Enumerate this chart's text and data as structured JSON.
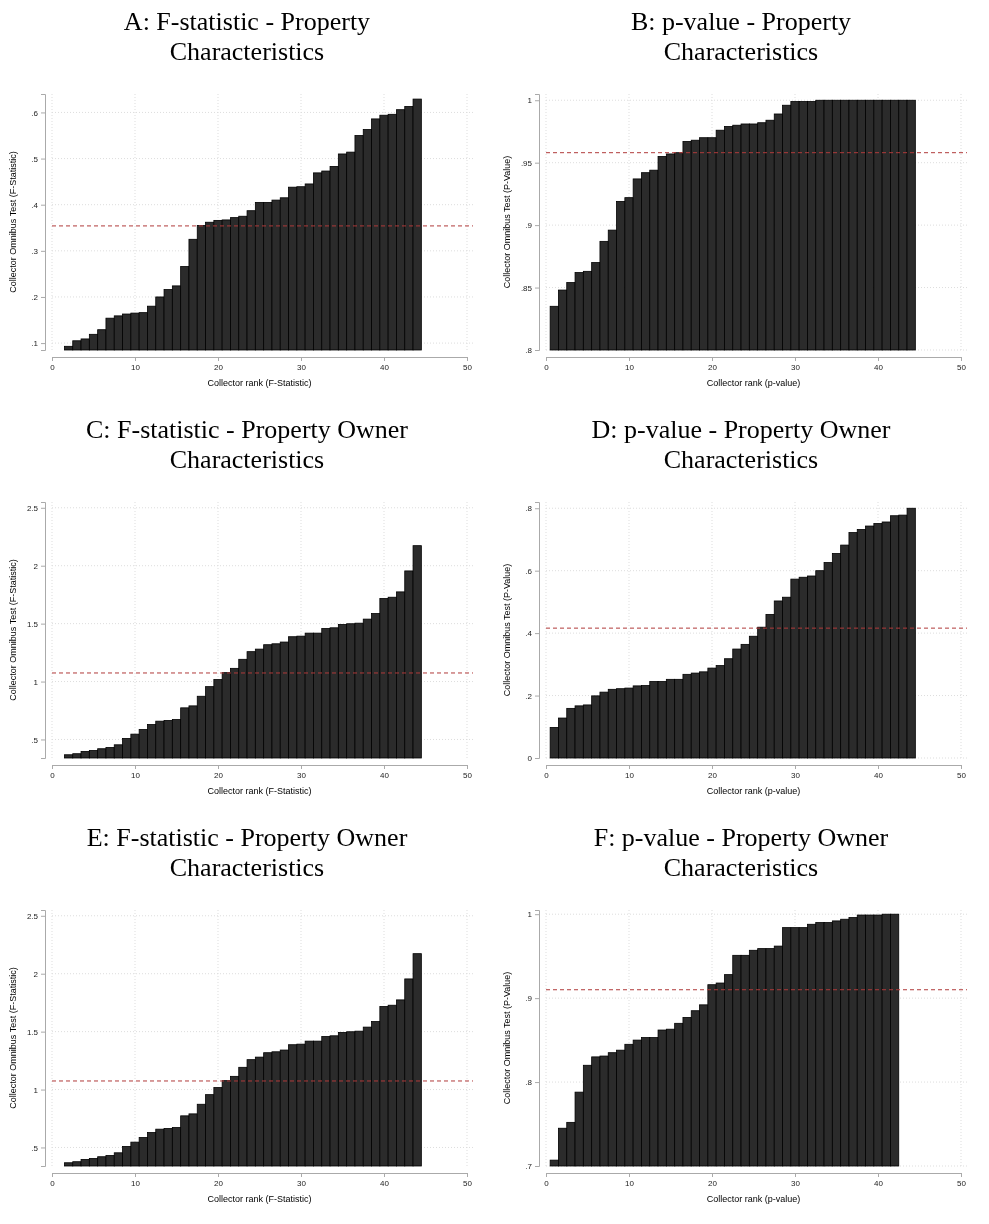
{
  "chart_data": [
    {
      "type": "bar",
      "title": "A: F-statistic - Property Characteristics",
      "xlabel": "Collector rank (F-Statistic)",
      "ylabel": "Collector Omnibus Test (F-Statistic)",
      "color": "#2b2b2b",
      "grid": true,
      "x": [
        2,
        3,
        4,
        5,
        6,
        7,
        8,
        9,
        10,
        11,
        12,
        13,
        14,
        15,
        16,
        17,
        18,
        19,
        20,
        21,
        22,
        23,
        24,
        25,
        26,
        27,
        28,
        29,
        30,
        31,
        32,
        33,
        34,
        35,
        36,
        37,
        38,
        39,
        40,
        41,
        42,
        43,
        44
      ],
      "values": [
        0.093,
        0.105,
        0.109,
        0.119,
        0.129,
        0.154,
        0.159,
        0.163,
        0.165,
        0.166,
        0.18,
        0.2,
        0.216,
        0.224,
        0.266,
        0.325,
        0.355,
        0.362,
        0.366,
        0.367,
        0.372,
        0.375,
        0.387,
        0.405,
        0.405,
        0.41,
        0.415,
        0.438,
        0.439,
        0.445,
        0.469,
        0.473,
        0.483,
        0.51,
        0.514,
        0.55,
        0.563,
        0.586,
        0.594,
        0.596,
        0.606,
        0.613,
        0.629
      ],
      "xlim": [
        0,
        50
      ],
      "xticks": [
        0,
        10,
        20,
        30,
        40,
        50
      ],
      "ylim": [
        0.085,
        0.64
      ],
      "yticks": [
        {
          "value": 0.1,
          "label": ".1"
        },
        {
          "value": 0.2,
          "label": ".2"
        },
        {
          "value": 0.3,
          "label": ".3"
        },
        {
          "value": 0.4,
          "label": ".4"
        },
        {
          "value": 0.5,
          "label": ".5"
        },
        {
          "value": 0.6,
          "label": ".6"
        }
      ],
      "ref_lines": [
        {
          "axis": "y",
          "value": 0.354,
          "color": "#b03a3a",
          "line_style": "dashed"
        }
      ]
    },
    {
      "type": "bar",
      "title": "B: p-value - Property Characteristics",
      "xlabel": "Collector rank (p-value)",
      "ylabel": "Collector Omnibus Test (P-Value)",
      "color": "#2b2b2b",
      "grid": true,
      "x": [
        1,
        2,
        3,
        4,
        5,
        6,
        7,
        8,
        9,
        10,
        11,
        12,
        13,
        14,
        15,
        16,
        17,
        18,
        19,
        20,
        21,
        22,
        23,
        24,
        25,
        26,
        27,
        28,
        29,
        30,
        31,
        32,
        33,
        34,
        35,
        36,
        37,
        38,
        39,
        40,
        41,
        42,
        43,
        44
      ],
      "values": [
        0.835,
        0.848,
        0.854,
        0.862,
        0.863,
        0.87,
        0.887,
        0.896,
        0.919,
        0.922,
        0.937,
        0.942,
        0.944,
        0.955,
        0.957,
        0.958,
        0.967,
        0.968,
        0.97,
        0.97,
        0.976,
        0.979,
        0.98,
        0.981,
        0.981,
        0.982,
        0.984,
        0.989,
        0.996,
        0.999,
        0.999,
        0.999,
        1,
        1,
        1,
        1,
        1,
        1,
        1,
        1,
        1,
        1,
        1,
        1
      ],
      "xlim": [
        0,
        50
      ],
      "xticks": [
        0,
        10,
        20,
        30,
        40,
        50
      ],
      "ylim": [
        0.8,
        1.005
      ],
      "yticks": [
        {
          "value": 0.8,
          "label": ".8"
        },
        {
          "value": 0.85,
          "label": ".85"
        },
        {
          "value": 0.9,
          "label": ".9"
        },
        {
          "value": 0.95,
          "label": ".95"
        },
        1
      ],
      "ref_lines": [
        {
          "axis": "y",
          "value": 0.958,
          "color": "#b03a3a",
          "line_style": "dashed"
        }
      ]
    },
    {
      "type": "bar",
      "title": "C: F-statistic - Property Owner Characteristics",
      "xlabel": "Collector rank (F-Statistic)",
      "ylabel": "Collector Omnibus Test (F-Statistic)",
      "color": "#2b2b2b",
      "grid": true,
      "x": [
        2,
        3,
        4,
        5,
        6,
        7,
        8,
        9,
        10,
        11,
        12,
        13,
        14,
        15,
        16,
        17,
        18,
        19,
        20,
        21,
        22,
        23,
        24,
        25,
        26,
        27,
        28,
        29,
        30,
        31,
        32,
        33,
        34,
        35,
        36,
        37,
        38,
        39,
        40,
        41,
        42,
        43,
        44
      ],
      "values": [
        0.368,
        0.377,
        0.397,
        0.405,
        0.42,
        0.431,
        0.454,
        0.509,
        0.546,
        0.586,
        0.629,
        0.658,
        0.664,
        0.672,
        0.773,
        0.79,
        0.873,
        0.956,
        1.017,
        1.077,
        1.114,
        1.192,
        1.258,
        1.28,
        1.318,
        1.326,
        1.341,
        1.387,
        1.392,
        1.418,
        1.418,
        1.458,
        1.464,
        1.493,
        1.499,
        1.504,
        1.539,
        1.587,
        1.717,
        1.728,
        1.774,
        1.955,
        2.173
      ],
      "xlim": [
        0,
        50
      ],
      "xticks": [
        0,
        10,
        20,
        30,
        40,
        50
      ],
      "ylim": [
        0.34,
        2.55
      ],
      "yticks": [
        {
          "value": 0.5,
          "label": ".5"
        },
        1,
        1.5,
        2,
        2.5
      ],
      "ref_lines": [
        {
          "axis": "y",
          "value": 1.074,
          "color": "#b03a3a",
          "line_style": "dashed"
        }
      ]
    },
    {
      "type": "bar",
      "title": "D: p-value - Property Owner Characteristics",
      "xlabel": "Collector rank (p-value)",
      "ylabel": "Collector Omnibus Test (P-Value)",
      "color": "#2b2b2b",
      "grid": true,
      "x": [
        1,
        2,
        3,
        4,
        5,
        6,
        7,
        8,
        9,
        10,
        11,
        12,
        13,
        14,
        15,
        16,
        17,
        18,
        19,
        20,
        21,
        22,
        23,
        24,
        25,
        26,
        27,
        28,
        29,
        30,
        31,
        32,
        33,
        34,
        35,
        36,
        37,
        38,
        39,
        40,
        41,
        42,
        43,
        44
      ],
      "values": [
        0.098,
        0.128,
        0.159,
        0.167,
        0.17,
        0.199,
        0.211,
        0.22,
        0.222,
        0.224,
        0.231,
        0.232,
        0.245,
        0.245,
        0.252,
        0.252,
        0.268,
        0.272,
        0.276,
        0.288,
        0.296,
        0.318,
        0.349,
        0.364,
        0.39,
        0.419,
        0.46,
        0.503,
        0.515,
        0.573,
        0.579,
        0.583,
        0.6,
        0.626,
        0.655,
        0.682,
        0.722,
        0.732,
        0.743,
        0.751,
        0.756,
        0.776,
        0.778,
        0.8
      ],
      "xlim": [
        0,
        50
      ],
      "xticks": [
        0,
        10,
        20,
        30,
        40,
        50
      ],
      "ylim": [
        0,
        0.82
      ],
      "yticks": [
        0,
        {
          "value": 0.2,
          "label": ".2"
        },
        {
          "value": 0.4,
          "label": ".4"
        },
        {
          "value": 0.6,
          "label": ".6"
        },
        {
          "value": 0.8,
          "label": ".8"
        }
      ],
      "ref_lines": [
        {
          "axis": "y",
          "value": 0.416,
          "color": "#b03a3a",
          "line_style": "dashed"
        }
      ]
    },
    {
      "type": "bar",
      "title": "E: F-statistic - Property Owner Characteristics",
      "xlabel": "Collector rank (F-Statistic)",
      "ylabel": "Collector Omnibus Test (F-Statistic)",
      "color": "#2b2b2b",
      "grid": true,
      "x": [
        2,
        3,
        4,
        5,
        6,
        7,
        8,
        9,
        10,
        11,
        12,
        13,
        14,
        15,
        16,
        17,
        18,
        19,
        20,
        21,
        22,
        23,
        24,
        25,
        26,
        27,
        28,
        29,
        30,
        31,
        32,
        33,
        34,
        35,
        36,
        37,
        38,
        39,
        40,
        41,
        42,
        43,
        44
      ],
      "values": [
        0.368,
        0.377,
        0.397,
        0.405,
        0.42,
        0.431,
        0.454,
        0.509,
        0.546,
        0.586,
        0.629,
        0.658,
        0.664,
        0.672,
        0.773,
        0.79,
        0.873,
        0.956,
        1.017,
        1.077,
        1.114,
        1.192,
        1.258,
        1.28,
        1.318,
        1.326,
        1.341,
        1.387,
        1.392,
        1.418,
        1.418,
        1.458,
        1.464,
        1.493,
        1.499,
        1.504,
        1.539,
        1.587,
        1.717,
        1.728,
        1.774,
        1.955,
        2.173
      ],
      "xlim": [
        0,
        50
      ],
      "xticks": [
        0,
        10,
        20,
        30,
        40,
        50
      ],
      "ylim": [
        0.34,
        2.55
      ],
      "yticks": [
        {
          "value": 0.5,
          "label": ".5"
        },
        1,
        1.5,
        2,
        2.5
      ],
      "ref_lines": [
        {
          "axis": "y",
          "value": 1.074,
          "color": "#b03a3a",
          "line_style": "dashed"
        }
      ]
    },
    {
      "type": "bar",
      "title": "F: p-value - Property Owner Characteristics",
      "xlabel": "Collector rank (p-value)",
      "ylabel": "Collector Omnibus Test (P-Value)",
      "color": "#2b2b2b",
      "grid": true,
      "x": [
        1,
        2,
        3,
        4,
        5,
        6,
        7,
        8,
        9,
        10,
        11,
        12,
        13,
        14,
        15,
        16,
        17,
        18,
        19,
        20,
        21,
        22,
        23,
        24,
        25,
        26,
        27,
        28,
        29,
        30,
        31,
        32,
        33,
        34,
        35,
        36,
        37,
        38,
        39,
        40,
        41,
        42
      ],
      "values": [
        0.707,
        0.745,
        0.752,
        0.788,
        0.82,
        0.83,
        0.831,
        0.835,
        0.838,
        0.845,
        0.85,
        0.853,
        0.853,
        0.862,
        0.863,
        0.87,
        0.877,
        0.885,
        0.892,
        0.916,
        0.918,
        0.928,
        0.951,
        0.951,
        0.957,
        0.959,
        0.959,
        0.962,
        0.984,
        0.984,
        0.984,
        0.988,
        0.99,
        0.99,
        0.992,
        0.994,
        0.996,
        0.999,
        0.999,
        0.999,
        1,
        1
      ],
      "xlim": [
        0,
        50
      ],
      "xticks": [
        0,
        10,
        20,
        30,
        40,
        50
      ],
      "ylim": [
        0.7,
        1.005
      ],
      "yticks": [
        {
          "value": 0.7,
          "label": ".7"
        },
        {
          "value": 0.8,
          "label": ".8"
        },
        {
          "value": 0.9,
          "label": ".9"
        },
        1
      ],
      "ref_lines": [
        {
          "axis": "y",
          "value": 0.91,
          "color": "#b03a3a",
          "line_style": "dashed"
        }
      ]
    }
  ]
}
